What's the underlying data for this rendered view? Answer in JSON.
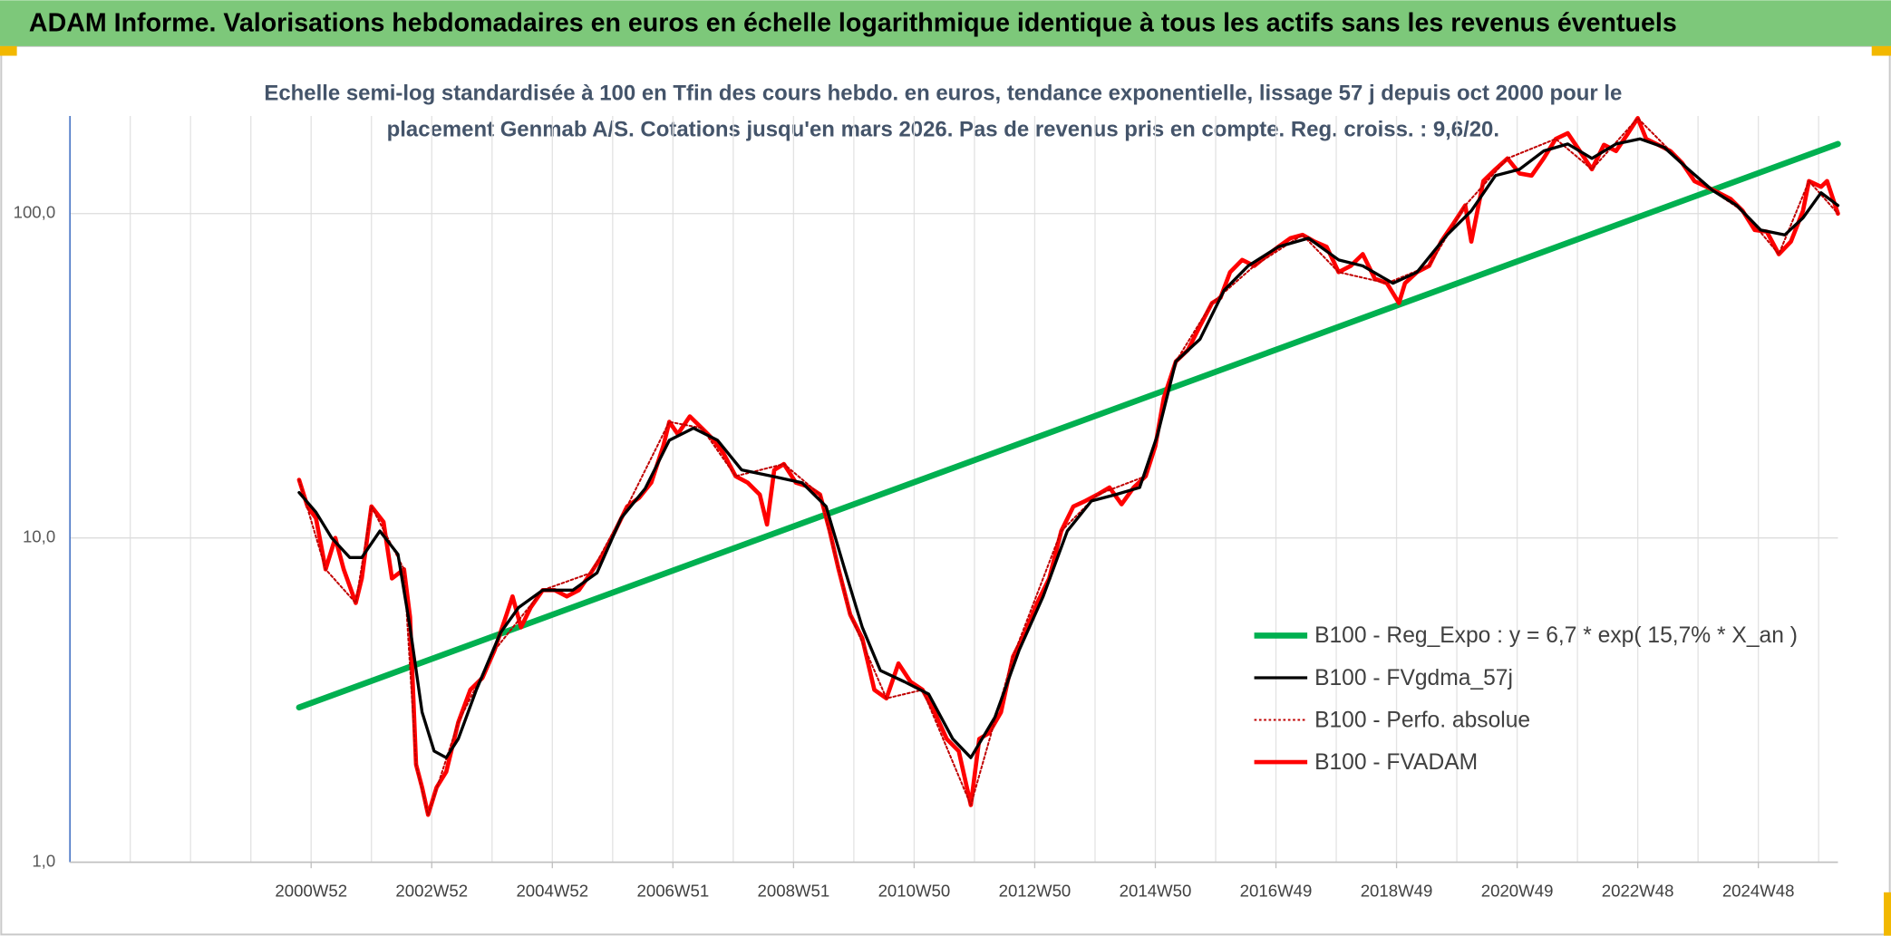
{
  "chart_data": {
    "type": "line",
    "title": "ADAM Informe. Valorisations hebdomadaires en euros en échelle logarithmique identique à tous les actifs sans les revenus éventuels",
    "subtitle": [
      "Echelle semi-log standardisée à 100 en Tfin des cours hebdo. en euros, tendance exponentielle, lissage 57 j depuis oct 2000 pour le",
      "placement Genmab A/S. Cotations jusqu'en mars 2026. Pas de revenus pris en compte. Reg. croiss. : 9,6/20."
    ],
    "log_scale": true,
    "grid": true,
    "legend": "lower right",
    "xlim": [
      1997,
      2026.32
    ],
    "ylim": [
      1,
      200
    ],
    "yticks": [
      {
        "value": 1,
        "label": "1,0"
      },
      {
        "value": 10,
        "label": "10,0"
      },
      {
        "value": 100,
        "label": "100,0"
      }
    ],
    "xticks": [
      {
        "value": 2001,
        "label": "2000W52"
      },
      {
        "value": 2003,
        "label": "2002W52"
      },
      {
        "value": 2005,
        "label": "2004W52"
      },
      {
        "value": 2007,
        "label": "2006W51"
      },
      {
        "value": 2009,
        "label": "2008W51"
      },
      {
        "value": 2011,
        "label": "2010W50"
      },
      {
        "value": 2013,
        "label": "2012W50"
      },
      {
        "value": 2015,
        "label": "2014W50"
      },
      {
        "value": 2017,
        "label": "2016W49"
      },
      {
        "value": 2019,
        "label": "2018W49"
      },
      {
        "value": 2021,
        "label": "2020W49"
      },
      {
        "value": 2023,
        "label": "2022W48"
      },
      {
        "value": 2025,
        "label": "2024W48"
      }
    ],
    "xgrid": [
      1998,
      1999,
      2000,
      2001,
      2002,
      2003,
      2004,
      2005,
      2006,
      2007,
      2008,
      2009,
      2010,
      2011,
      2012,
      2013,
      2014,
      2015,
      2016,
      2017,
      2018,
      2019,
      2020,
      2021,
      2022,
      2023,
      2024,
      2025,
      2026
    ],
    "series": [
      {
        "name": "B100 - Reg_Expo : y = 6,7 * exp( 15,7% *  X_an )",
        "color": "#00b050",
        "width": 5,
        "dash": "none",
        "x": [
          2000.8,
          2026.32
        ],
        "values": [
          3.0,
          164
        ]
      },
      {
        "name": "B100 - FVgdma_57j",
        "color": "#000000",
        "width": 2.5,
        "dash": "none",
        "x": [
          2000.8,
          2001.08,
          2001.34,
          2001.64,
          2001.84,
          2002.14,
          2002.44,
          2002.64,
          2002.84,
          2003.04,
          2003.24,
          2003.44,
          2003.74,
          2004.14,
          2004.44,
          2004.84,
          2005.34,
          2005.74,
          2006.14,
          2006.54,
          2006.94,
          2007.34,
          2007.74,
          2008.14,
          2008.64,
          2009.14,
          2009.54,
          2009.84,
          2010.14,
          2010.44,
          2010.84,
          2011.24,
          2011.64,
          2011.94,
          2012.34,
          2012.74,
          2013.14,
          2013.54,
          2013.94,
          2014.34,
          2014.74,
          2015.04,
          2015.34,
          2015.74,
          2016.14,
          2016.54,
          2017.04,
          2017.54,
          2018.04,
          2018.44,
          2018.94,
          2019.34,
          2019.84,
          2020.24,
          2020.64,
          2021.04,
          2021.44,
          2021.84,
          2022.24,
          2022.64,
          2023.04,
          2023.44,
          2023.84,
          2024.24,
          2024.64,
          2025.04,
          2025.44,
          2025.74,
          2026.04,
          2026.32
        ],
        "values": [
          13.8,
          12,
          10,
          8.7,
          8.7,
          10.5,
          8.9,
          5.3,
          2.9,
          2.2,
          2.1,
          2.4,
          3.4,
          5.1,
          6.1,
          6.9,
          6.9,
          7.8,
          11.5,
          14.2,
          20,
          21.8,
          20,
          16.2,
          15.5,
          14.8,
          12.5,
          8.1,
          5.3,
          3.9,
          3.6,
          3.3,
          2.4,
          2.1,
          2.8,
          4.5,
          6.6,
          10.5,
          13,
          13.6,
          14.3,
          20.9,
          35,
          41,
          58,
          69,
          79,
          84,
          72,
          69,
          61,
          66,
          86,
          102,
          131,
          137,
          156,
          164,
          148,
          164,
          170,
          160,
          137,
          118,
          106,
          89,
          86,
          97,
          116,
          106
        ]
      },
      {
        "name": "B100 - Perfo. absolue",
        "color": "#c00000",
        "width": 1.5,
        "dash": "2 2",
        "x": [
          2000.8,
          2001.24,
          2001.74,
          2002.0,
          2002.54,
          2002.74,
          2002.94,
          2003.44,
          2004.04,
          2004.84,
          2005.64,
          2006.24,
          2006.94,
          2007.48,
          2008.04,
          2008.84,
          2009.44,
          2009.94,
          2010.54,
          2011.14,
          2011.94,
          2012.64,
          2013.44,
          2014.04,
          2014.84,
          2015.34,
          2015.94,
          2016.64,
          2017.44,
          2018.04,
          2018.84,
          2019.54,
          2020.14,
          2020.84,
          2021.64,
          2022.24,
          2023.0,
          2023.54,
          2024.14,
          2024.74,
          2025.34,
          2025.84,
          2026.32
        ],
        "values": [
          15.1,
          8.0,
          6.3,
          12.5,
          8.0,
          2.0,
          1.4,
          2.7,
          4.5,
          6.9,
          7.8,
          12.5,
          22.8,
          21.8,
          15.5,
          16.9,
          13.6,
          5.8,
          3.2,
          3.4,
          1.5,
          4.3,
          10.5,
          13.6,
          15.5,
          35,
          53,
          69,
          86,
          66,
          61,
          69,
          106,
          148,
          170,
          137,
          197,
          156,
          121,
          102,
          75,
          126,
          100
        ]
      },
      {
        "name": "B100 - FVADAM",
        "color": "#ff0000",
        "width": 3.5,
        "dash": "none",
        "x": [
          2000.8,
          2000.94,
          2001.08,
          2001.24,
          2001.4,
          2001.54,
          2001.74,
          2001.84,
          2002.0,
          2002.2,
          2002.34,
          2002.54,
          2002.64,
          2002.74,
          2002.84,
          2002.94,
          2003.08,
          2003.24,
          2003.44,
          2003.64,
          2003.84,
          2004.04,
          2004.24,
          2004.34,
          2004.48,
          2004.64,
          2004.84,
          2005.04,
          2005.24,
          2005.44,
          2005.64,
          2005.84,
          2006.04,
          2006.24,
          2006.44,
          2006.64,
          2006.84,
          2006.94,
          2007.08,
          2007.28,
          2007.48,
          2007.68,
          2007.84,
          2008.04,
          2008.24,
          2008.44,
          2008.56,
          2008.68,
          2008.84,
          2009.04,
          2009.24,
          2009.44,
          2009.6,
          2009.74,
          2009.94,
          2010.14,
          2010.34,
          2010.54,
          2010.74,
          2010.94,
          2011.14,
          2011.34,
          2011.54,
          2011.74,
          2011.94,
          2012.08,
          2012.24,
          2012.44,
          2012.64,
          2012.84,
          2013.04,
          2013.24,
          2013.44,
          2013.64,
          2013.84,
          2014.04,
          2014.24,
          2014.44,
          2014.64,
          2014.84,
          2015.0,
          2015.14,
          2015.34,
          2015.54,
          2015.74,
          2015.94,
          2016.08,
          2016.24,
          2016.44,
          2016.64,
          2016.84,
          2017.04,
          2017.24,
          2017.44,
          2017.64,
          2017.84,
          2018.04,
          2018.24,
          2018.44,
          2018.64,
          2018.84,
          2019.04,
          2019.14,
          2019.34,
          2019.54,
          2019.74,
          2019.94,
          2020.14,
          2020.24,
          2020.44,
          2020.64,
          2020.84,
          2021.04,
          2021.24,
          2021.44,
          2021.64,
          2021.84,
          2022.04,
          2022.24,
          2022.44,
          2022.64,
          2022.84,
          2023.0,
          2023.14,
          2023.34,
          2023.54,
          2023.74,
          2023.94,
          2024.14,
          2024.34,
          2024.54,
          2024.74,
          2024.94,
          2025.14,
          2025.34,
          2025.54,
          2025.74,
          2025.84,
          2026.04,
          2026.14,
          2026.32
        ],
        "values": [
          15.1,
          12.5,
          11.5,
          8.0,
          10.0,
          8.0,
          6.3,
          7.5,
          12.5,
          11.2,
          7.5,
          8.0,
          5.7,
          2.0,
          1.7,
          1.4,
          1.7,
          1.9,
          2.7,
          3.4,
          3.7,
          4.5,
          5.8,
          6.6,
          5.3,
          6.1,
          6.9,
          6.9,
          6.6,
          6.9,
          7.8,
          8.9,
          10.5,
          12.5,
          13.3,
          14.8,
          19.2,
          22.8,
          20.9,
          23.7,
          21.8,
          20.0,
          18.2,
          15.5,
          14.8,
          13.6,
          11.0,
          16.2,
          16.9,
          14.8,
          14.4,
          13.6,
          10.5,
          8.1,
          5.8,
          4.9,
          3.4,
          3.2,
          4.1,
          3.6,
          3.4,
          2.9,
          2.4,
          2.2,
          1.5,
          2.4,
          2.5,
          2.9,
          4.3,
          5.1,
          6.3,
          7.5,
          10.5,
          12.5,
          13.0,
          13.6,
          14.3,
          12.7,
          14.3,
          15.5,
          19.2,
          27,
          35,
          38,
          45,
          53,
          55,
          66,
          72,
          69,
          74,
          79,
          84,
          86,
          82,
          79,
          66,
          69,
          75,
          63,
          61,
          53,
          61,
          66,
          69,
          82,
          93,
          106,
          82,
          126,
          137,
          148,
          133,
          131,
          148,
          170,
          177,
          156,
          137,
          163,
          156,
          177,
          197,
          170,
          163,
          156,
          143,
          126,
          121,
          116,
          111,
          102,
          89,
          88,
          75,
          82,
          102,
          126,
          121,
          126,
          100
        ]
      }
    ]
  }
}
